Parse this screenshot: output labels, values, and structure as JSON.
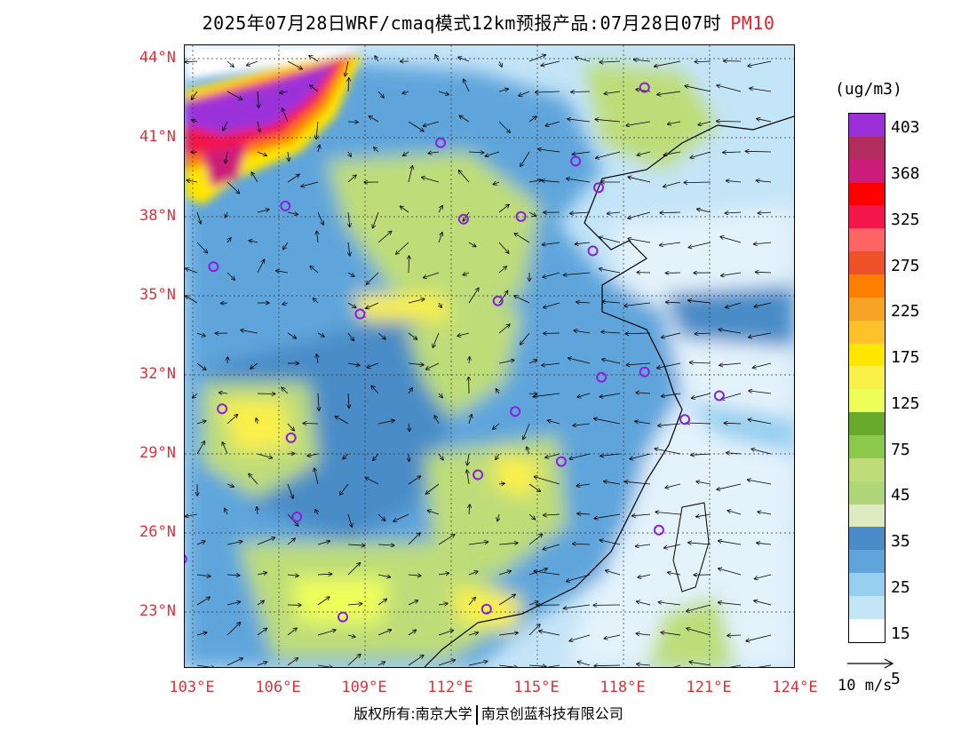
{
  "title": {
    "main": "2025年07月28日WRF/cmaq模式12km预报产品:07月28日07时",
    "species": "PM10",
    "species_color": "#e8222a"
  },
  "axes": {
    "latitudes": [
      "44°N",
      "41°N",
      "38°N",
      "35°N",
      "32°N",
      "29°N",
      "26°N",
      "23°N"
    ],
    "longitudes": [
      "103°E",
      "106°E",
      "109°E",
      "112°E",
      "115°E",
      "118°E",
      "121°E",
      "124°E"
    ],
    "label_color": "#e0303a"
  },
  "colorbar": {
    "unit": "(ug/m3)",
    "colors": [
      "#9B30D9",
      "#B22C5E",
      "#CC1C7A",
      "#FF0000",
      "#F4164A",
      "#FF6464",
      "#EE5028",
      "#FF7F00",
      "#F7A426",
      "#FFC12A",
      "#FFE600",
      "#FAF04A",
      "#EEFF5A",
      "#6AAA2A",
      "#8CC84A",
      "#BEDD78",
      "#B0D67A",
      "#DEEBC0",
      "#4A8CC8",
      "#5FA5DC",
      "#96CFF0",
      "#C4E4F7",
      "#FFFFFF"
    ],
    "labels": [
      "403",
      "368",
      "325",
      "275",
      "225",
      "175",
      "125",
      "75",
      "45",
      "35",
      "25",
      "15",
      "5"
    ]
  },
  "wind_reference": {
    "label": "10 m/s"
  },
  "stations": [
    {
      "lat": 42.9,
      "lon": 118.8
    },
    {
      "lat": 40.8,
      "lon": 111.7
    },
    {
      "lat": 40.1,
      "lon": 116.4
    },
    {
      "lat": 39.1,
      "lon": 117.2
    },
    {
      "lat": 38.4,
      "lon": 106.3
    },
    {
      "lat": 38.0,
      "lon": 114.5
    },
    {
      "lat": 37.9,
      "lon": 112.5
    },
    {
      "lat": 36.7,
      "lon": 117.0
    },
    {
      "lat": 36.1,
      "lon": 103.8
    },
    {
      "lat": 34.8,
      "lon": 113.7
    },
    {
      "lat": 34.3,
      "lon": 108.9
    },
    {
      "lat": 31.9,
      "lon": 117.3
    },
    {
      "lat": 32.1,
      "lon": 118.8
    },
    {
      "lat": 31.2,
      "lon": 121.4
    },
    {
      "lat": 30.7,
      "lon": 104.1
    },
    {
      "lat": 30.6,
      "lon": 114.3
    },
    {
      "lat": 30.3,
      "lon": 120.2
    },
    {
      "lat": 29.6,
      "lon": 106.5
    },
    {
      "lat": 28.7,
      "lon": 115.9
    },
    {
      "lat": 28.2,
      "lon": 113.0
    },
    {
      "lat": 26.6,
      "lon": 106.7
    },
    {
      "lat": 26.1,
      "lon": 119.3
    },
    {
      "lat": 25.0,
      "lon": 102.7
    },
    {
      "lat": 23.1,
      "lon": 113.3
    },
    {
      "lat": 22.8,
      "lon": 108.3
    }
  ],
  "copyright": {
    "left": "版权所有:南京大学",
    "right": "南京创蓝科技有限公司"
  }
}
